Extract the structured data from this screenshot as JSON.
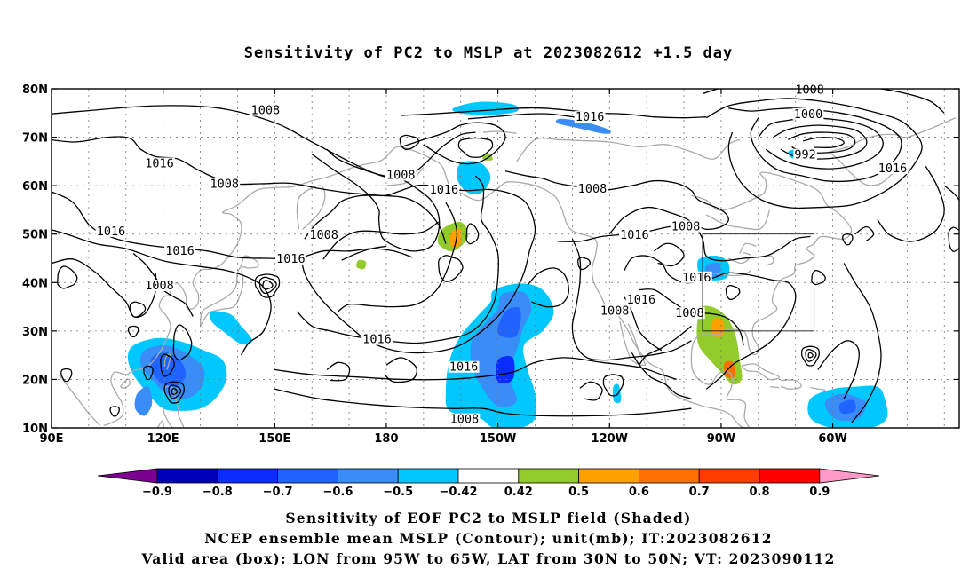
{
  "title": "Sensitivity of PC2 to MSLP at 2023082612 +1.5 day",
  "lat_labels": [
    "80N",
    "70N",
    "60N",
    "50N",
    "40N",
    "30N",
    "20N",
    "10N"
  ],
  "lon_labels": [
    "90E",
    "120E",
    "150E",
    "180",
    "150W",
    "120W",
    "90W",
    "60W"
  ],
  "contour_labels": [
    {
      "text": "1008",
      "lon": -212.5,
      "lat": 75.6
    },
    {
      "text": "1016",
      "lon": -241.0,
      "lat": 64.6
    },
    {
      "text": "1008",
      "lon": -223.5,
      "lat": 60.4
    },
    {
      "text": "1016",
      "lon": -254.0,
      "lat": 50.6
    },
    {
      "text": "1016",
      "lon": -235.5,
      "lat": 46.6
    },
    {
      "text": "1008",
      "lon": -241.0,
      "lat": 39.4
    },
    {
      "text": "1008",
      "lon": -196.8,
      "lat": 49.9
    },
    {
      "text": "1016",
      "lon": -205.7,
      "lat": 44.9
    },
    {
      "text": "1008",
      "lon": -176.1,
      "lat": 62.2
    },
    {
      "text": "1016",
      "lon": -164.5,
      "lat": 59.2
    },
    {
      "text": "1016",
      "lon": -182.5,
      "lat": 28.3
    },
    {
      "text": "1016",
      "lon": -159.2,
      "lat": 22.6
    },
    {
      "text": "1008",
      "lon": -159.0,
      "lat": 11.8
    },
    {
      "text": "1016",
      "lon": -125.3,
      "lat": 74.2
    },
    {
      "text": "1008",
      "lon": -124.6,
      "lat": 59.4
    },
    {
      "text": "1016",
      "lon": -113.3,
      "lat": 49.9
    },
    {
      "text": "1016",
      "lon": -111.5,
      "lat": 36.5
    },
    {
      "text": "1008",
      "lon": -118.6,
      "lat": 34.2
    },
    {
      "text": "1008",
      "lon": -98.5,
      "lat": 33.7
    },
    {
      "text": "1016",
      "lon": -96.6,
      "lat": 41.1
    },
    {
      "text": "1008",
      "lon": -99.5,
      "lat": 51.6
    },
    {
      "text": "1008",
      "lon": -66.2,
      "lat": 79.8
    },
    {
      "text": "1000",
      "lon": -66.6,
      "lat": 74.8
    },
    {
      "text": "992",
      "lon": -67.4,
      "lat": 66.4
    },
    {
      "text": "1016",
      "lon": -43.9,
      "lat": 63.6
    }
  ],
  "colorbar": {
    "left_labels": [
      "-0.9",
      "-0.8",
      "-0.7",
      "-0.6",
      "-0.5",
      "-0.42"
    ],
    "right_labels": [
      "0.42",
      "0.5",
      "0.6",
      "0.7",
      "0.8",
      "0.9"
    ],
    "colors": [
      "#7a0090",
      "#0000b8",
      "#0a2cff",
      "#1f64ff",
      "#3a8cf6",
      "#00c8ff",
      "#ffffff",
      "#93cc2a",
      "#ffa000",
      "#ff7000",
      "#ff3d00",
      "#ff0000",
      "#ff9ac8"
    ]
  },
  "valid_box": {
    "lon_west": -95,
    "lon_east": -65,
    "lat_south": 30,
    "lat_north": 50
  },
  "captions": [
    "Sensitivity of EOF PC2 to MSLP field (Shaded)",
    "NCEP ensemble mean MSLP (Contour); unit(mb); IT:2023082612",
    "Valid area (box): LON from 95W to 65W, LAT from 30N to 50N; VT: 2023090112"
  ]
}
